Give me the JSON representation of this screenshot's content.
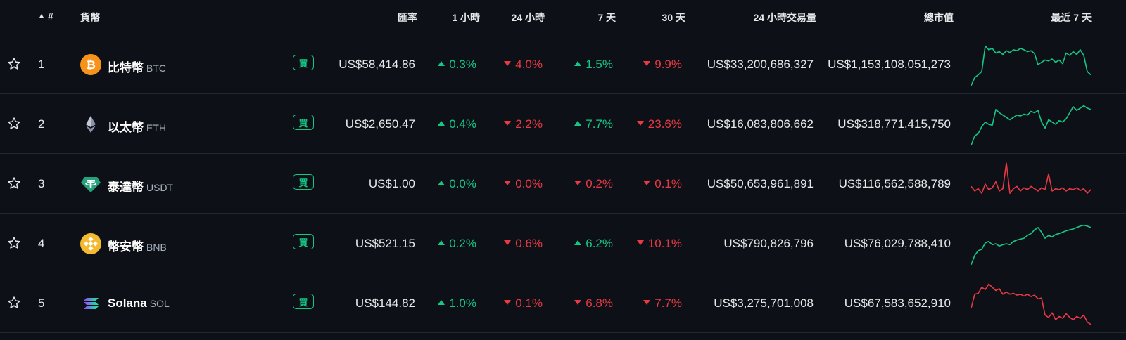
{
  "header": {
    "rank": "#",
    "coin": "貨幣",
    "price": "匯率",
    "h1": "1 小時",
    "h24": "24 小時",
    "d7": "7 天",
    "d30": "30 天",
    "volume": "24 小時交易量",
    "mcap": "總市值",
    "chart": "最近 7 天"
  },
  "buy_label": "買",
  "colors": {
    "up": "#16c784",
    "down": "#ea3943",
    "background": "#0d1117"
  },
  "rows": [
    {
      "rank": "1",
      "name": "比特幣",
      "symbol": "BTC",
      "icon": "bitcoin-icon",
      "price": "US$58,414.86",
      "h1": "0.3%",
      "h24": "4.0%",
      "d7": "1.5%",
      "d30": "9.9%",
      "h1_dir": "up",
      "h24_dir": "down",
      "d7_dir": "up",
      "d30_dir": "down",
      "volume": "US$33,200,686,327",
      "mcap": "US$1,153,108,051,273",
      "trend": "up",
      "spark": [
        0.05,
        0.22,
        0.28,
        0.35,
        0.9,
        0.82,
        0.85,
        0.75,
        0.78,
        0.72,
        0.8,
        0.76,
        0.82,
        0.8,
        0.85,
        0.82,
        0.78,
        0.8,
        0.74,
        0.5,
        0.55,
        0.6,
        0.58,
        0.62,
        0.55,
        0.6,
        0.52,
        0.75,
        0.7,
        0.78,
        0.72,
        0.82,
        0.7,
        0.35,
        0.28
      ]
    },
    {
      "rank": "2",
      "name": "以太幣",
      "symbol": "ETH",
      "icon": "ethereum-icon",
      "price": "US$2,650.47",
      "h1": "0.4%",
      "h24": "2.2%",
      "d7": "7.7%",
      "d30": "23.6%",
      "h1_dir": "up",
      "h24_dir": "down",
      "d7_dir": "up",
      "d30_dir": "down",
      "volume": "US$16,083,806,662",
      "mcap": "US$318,771,415,750",
      "trend": "up",
      "spark": [
        0.05,
        0.25,
        0.3,
        0.45,
        0.55,
        0.5,
        0.48,
        0.82,
        0.75,
        0.7,
        0.65,
        0.6,
        0.65,
        0.7,
        0.68,
        0.72,
        0.7,
        0.78,
        0.75,
        0.8,
        0.55,
        0.42,
        0.6,
        0.55,
        0.5,
        0.58,
        0.55,
        0.62,
        0.75,
        0.88,
        0.8,
        0.85,
        0.9,
        0.85,
        0.82
      ]
    },
    {
      "rank": "3",
      "name": "泰達幣",
      "symbol": "USDT",
      "icon": "tether-icon",
      "price": "US$1.00",
      "h1": "0.0%",
      "h24": "0.0%",
      "d7": "0.2%",
      "d30": "0.1%",
      "h1_dir": "up",
      "h24_dir": "down",
      "d7_dir": "down",
      "d30_dir": "down",
      "volume": "US$50,653,961,891",
      "mcap": "US$116,562,588,789",
      "trend": "down",
      "spark": [
        0.45,
        0.35,
        0.4,
        0.3,
        0.5,
        0.38,
        0.42,
        0.55,
        0.35,
        0.4,
        0.95,
        0.3,
        0.4,
        0.45,
        0.35,
        0.42,
        0.38,
        0.45,
        0.4,
        0.35,
        0.42,
        0.38,
        0.72,
        0.35,
        0.4,
        0.38,
        0.42,
        0.35,
        0.4,
        0.38,
        0.42,
        0.36,
        0.4,
        0.3,
        0.38
      ]
    },
    {
      "rank": "4",
      "name": "幣安幣",
      "symbol": "BNB",
      "icon": "bnb-icon",
      "price": "US$521.15",
      "h1": "0.2%",
      "h24": "0.6%",
      "d7": "6.2%",
      "d30": "10.1%",
      "h1_dir": "up",
      "h24_dir": "down",
      "d7_dir": "up",
      "d30_dir": "down",
      "volume": "US$790,826,796",
      "mcap": "US$76,029,788,410",
      "trend": "up",
      "spark": [
        0.05,
        0.25,
        0.35,
        0.38,
        0.52,
        0.55,
        0.48,
        0.5,
        0.45,
        0.48,
        0.5,
        0.48,
        0.55,
        0.58,
        0.6,
        0.62,
        0.68,
        0.72,
        0.8,
        0.85,
        0.75,
        0.62,
        0.68,
        0.65,
        0.7,
        0.72,
        0.75,
        0.78,
        0.8,
        0.82,
        0.85,
        0.88,
        0.9,
        0.88,
        0.85
      ]
    },
    {
      "rank": "5",
      "name": "Solana",
      "symbol": "SOL",
      "icon": "solana-icon",
      "price": "US$144.82",
      "h1": "1.0%",
      "h24": "0.1%",
      "d7": "6.8%",
      "d30": "7.7%",
      "h1_dir": "up",
      "h24_dir": "down",
      "d7_dir": "down",
      "d30_dir": "down",
      "volume": "US$3,275,701,008",
      "mcap": "US$67,583,652,910",
      "trend": "down",
      "spark": [
        0.4,
        0.7,
        0.72,
        0.85,
        0.8,
        0.92,
        0.85,
        0.78,
        0.82,
        0.7,
        0.75,
        0.7,
        0.72,
        0.68,
        0.7,
        0.66,
        0.7,
        0.65,
        0.68,
        0.6,
        0.62,
        0.25,
        0.2,
        0.3,
        0.15,
        0.22,
        0.18,
        0.28,
        0.2,
        0.15,
        0.22,
        0.18,
        0.25,
        0.1,
        0.05
      ]
    }
  ]
}
